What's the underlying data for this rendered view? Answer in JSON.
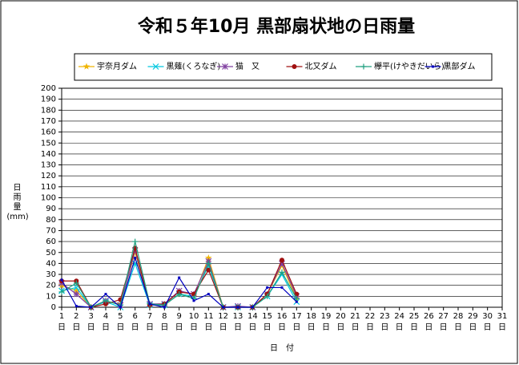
{
  "chart_data": {
    "type": "line",
    "title": "令和５年10月 黒部扇状地の日雨量",
    "y_label": "日雨量",
    "y_unit": "(mm)",
    "x_label": "日　付",
    "x_unit": "日",
    "categories": [
      "1",
      "2",
      "3",
      "4",
      "5",
      "6",
      "7",
      "8",
      "9",
      "10",
      "11",
      "12",
      "13",
      "14",
      "15",
      "16",
      "17",
      "18",
      "19",
      "20",
      "21",
      "22",
      "23",
      "24",
      "25",
      "26",
      "27",
      "28",
      "29",
      "30",
      "31"
    ],
    "ylim": [
      0,
      200
    ],
    "yticks": [
      0,
      10,
      20,
      30,
      40,
      50,
      60,
      70,
      80,
      90,
      100,
      110,
      120,
      130,
      140,
      150,
      160,
      170,
      180,
      190,
      200
    ],
    "grid": true,
    "legend": "top",
    "series": [
      {
        "name": "宇奈月ダム",
        "color": "#f0b400",
        "marker": "star",
        "values": [
          20,
          15,
          0,
          5,
          3,
          50,
          2,
          2,
          12,
          10,
          45,
          0,
          0,
          0,
          12,
          38,
          8,
          null,
          null,
          null,
          null,
          null,
          null,
          null,
          null,
          null,
          null,
          null,
          null,
          null,
          null
        ]
      },
      {
        "name": "黒薙(くろなぎ)",
        "color": "#00c8e0",
        "marker": "x",
        "values": [
          15,
          18,
          0,
          5,
          0,
          40,
          2,
          2,
          12,
          10,
          38,
          0,
          0,
          0,
          10,
          30,
          5,
          null,
          null,
          null,
          null,
          null,
          null,
          null,
          null,
          null,
          null,
          null,
          null,
          null,
          null
        ]
      },
      {
        "name": "猫　又",
        "color": "#8040a0",
        "marker": "asterisk",
        "values": [
          22,
          12,
          0,
          6,
          2,
          52,
          3,
          3,
          15,
          12,
          42,
          0,
          1,
          0,
          12,
          40,
          10,
          null,
          null,
          null,
          null,
          null,
          null,
          null,
          null,
          null,
          null,
          null,
          null,
          null,
          null
        ]
      },
      {
        "name": "北又ダム",
        "color": "#a01010",
        "marker": "circle",
        "values": [
          24,
          24,
          0,
          3,
          7,
          54,
          2,
          3,
          14,
          12,
          34,
          0,
          0,
          0,
          12,
          43,
          12,
          null,
          null,
          null,
          null,
          null,
          null,
          null,
          null,
          null,
          null,
          null,
          null,
          null,
          null
        ]
      },
      {
        "name": "欅平(けやきだいら)",
        "color": "#20a080",
        "marker": "plus",
        "values": [
          14,
          22,
          0,
          6,
          2,
          60,
          3,
          2,
          12,
          8,
          40,
          0,
          0,
          0,
          10,
          32,
          8,
          null,
          null,
          null,
          null,
          null,
          null,
          null,
          null,
          null,
          null,
          null,
          null,
          null,
          null
        ]
      },
      {
        "name": "黒部ダム",
        "color": "#0000c0",
        "marker": "dot",
        "values": [
          25,
          1,
          0,
          12,
          0,
          45,
          3,
          0,
          27,
          6,
          12,
          0,
          0,
          0,
          18,
          18,
          5,
          null,
          null,
          null,
          null,
          null,
          null,
          null,
          null,
          null,
          null,
          null,
          null,
          null,
          null
        ]
      }
    ]
  }
}
